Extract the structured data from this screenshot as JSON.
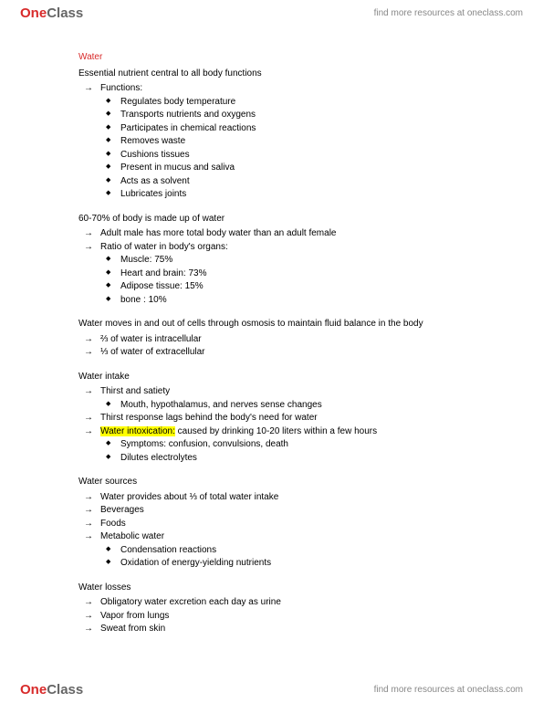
{
  "brand": {
    "one": "One",
    "class": "Class"
  },
  "header_link": "find more resources at oneclass.com",
  "footer_link": "find more resources at oneclass.com",
  "title": "Water",
  "s1": {
    "lead": "Essential nutrient central to all body functions",
    "arrow1": "Functions:",
    "d": [
      "Regulates body temperature",
      "Transports nutrients and oxygens",
      "Participates in chemical reactions",
      "Removes waste",
      "Cushions tissues",
      "Present in mucus and saliva",
      "Acts as a solvent",
      "Lubricates joints"
    ]
  },
  "s2": {
    "lead": "60-70% of body is made up of water",
    "a": [
      "Adult male has more total body water than an adult female",
      "Ratio of water in body's organs:"
    ],
    "d": [
      "Muscle: 75%",
      "Heart and brain: 73%",
      "Adipose tissue: 15%",
      "bone : 10%"
    ]
  },
  "s3": {
    "lead": "Water moves in and out of cells through osmosis to maintain fluid balance in the body",
    "a": [
      "⅔ of water is intracellular",
      "⅓ of water of extracellular"
    ]
  },
  "s4": {
    "lead": "Water intake",
    "a1": "Thirst and satiety",
    "d1": "Mouth, hypothalamus, and nerves sense changes",
    "a2": "Thirst response lags behind the body's need for water",
    "a3_hl": "Water intoxication:",
    "a3_rest": " caused by drinking 10-20 liters within a few hours",
    "d2": [
      "Symptoms: confusion, convulsions, death",
      "Dilutes electrolytes"
    ]
  },
  "s5": {
    "lead": "Water sources",
    "a": [
      "Water provides about ⅓ of total water intake",
      "Beverages",
      "Foods",
      "Metabolic water"
    ],
    "d": [
      "Condensation reactions",
      "Oxidation of energy-yielding nutrients"
    ]
  },
  "s6": {
    "lead": "Water losses",
    "a": [
      "Obligatory water excretion each day as urine",
      "Vapor from lungs",
      "Sweat from skin"
    ]
  }
}
